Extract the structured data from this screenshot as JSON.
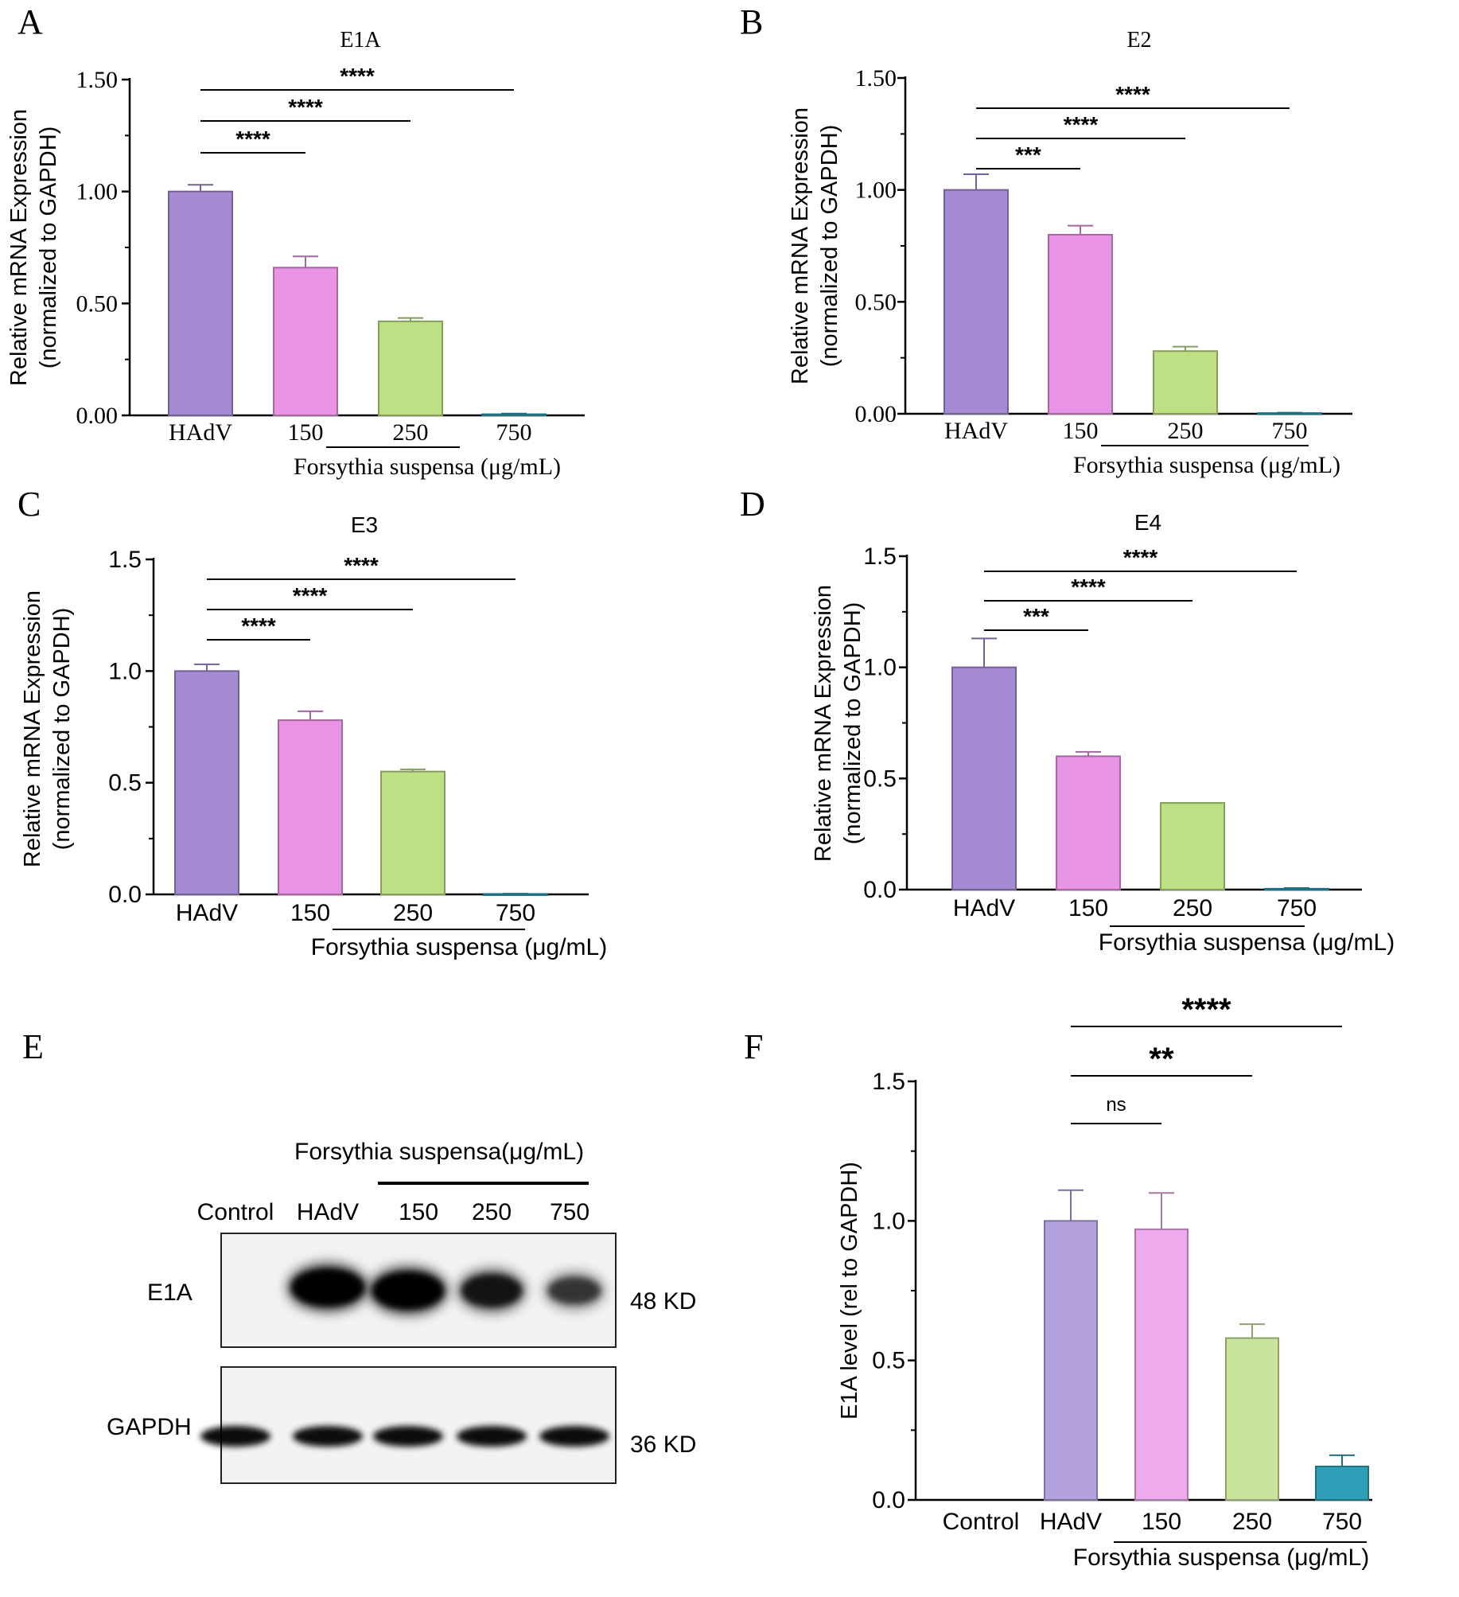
{
  "figure": {
    "panel_labels": [
      "A",
      "B",
      "C",
      "D",
      "E",
      "F"
    ],
    "x_group_label": "Forsythia suspensa (μg/mL)"
  },
  "colors": {
    "hadv": "#a58bd3",
    "c150": "#e993e6",
    "c250": "#bde084",
    "c750": "#2f9fb8",
    "f_hadv": "#b3a1de",
    "f_150": "#eeaaec",
    "f_250": "#c9e59c",
    "axis": "#000000"
  },
  "chart_data": [
    {
      "panel": "A",
      "type": "bar",
      "title": "E1A",
      "style": "serif-ticks",
      "ylabel": "Relative mRNA Expression",
      "ylabel2": "(normalized to GAPDH)",
      "xlabel": "Forsythia suspensa (μg/mL)",
      "categories": [
        "HAdV",
        "150",
        "250",
        "750"
      ],
      "values": [
        1.0,
        0.66,
        0.42,
        0.005
      ],
      "errors": [
        0.03,
        0.05,
        0.015,
        0.003
      ],
      "ylim": [
        0,
        1.5
      ],
      "yticks": [
        "0.00",
        "0.50",
        "1.00",
        "1.50"
      ],
      "significance": [
        {
          "from": 0,
          "to": 1,
          "label": "****"
        },
        {
          "from": 0,
          "to": 2,
          "label": "****"
        },
        {
          "from": 0,
          "to": 3,
          "label": "****"
        }
      ]
    },
    {
      "panel": "B",
      "type": "bar",
      "title": "E2",
      "style": "serif-ticks",
      "ylabel": "Relative mRNA Expression",
      "ylabel2": "(normalized to GAPDH)",
      "xlabel": "Forsythia suspensa (μg/mL)",
      "categories": [
        "HAdV",
        "150",
        "250",
        "750"
      ],
      "values": [
        1.0,
        0.8,
        0.28,
        0.003
      ],
      "errors": [
        0.07,
        0.04,
        0.02,
        0.002
      ],
      "ylim": [
        0,
        1.5
      ],
      "yticks": [
        "0.00",
        "0.50",
        "1.00",
        "1.50"
      ],
      "significance": [
        {
          "from": 0,
          "to": 1,
          "label": "***"
        },
        {
          "from": 0,
          "to": 2,
          "label": "****"
        },
        {
          "from": 0,
          "to": 3,
          "label": "****"
        }
      ]
    },
    {
      "panel": "C",
      "type": "bar",
      "title": "E3",
      "style": "sans",
      "ylabel": "Relative mRNA Expression",
      "ylabel2": "(normalized to GAPDH)",
      "xlabel": "Forsythia suspensa (μg/mL)",
      "categories": [
        "HAdV",
        "150",
        "250",
        "750"
      ],
      "values": [
        1.0,
        0.78,
        0.55,
        0.002
      ],
      "errors": [
        0.03,
        0.04,
        0.01,
        0.001
      ],
      "ylim": [
        0,
        1.5
      ],
      "yticks": [
        "0.0",
        "0.5",
        "1.0",
        "1.5"
      ],
      "significance": [
        {
          "from": 0,
          "to": 1,
          "label": "****"
        },
        {
          "from": 0,
          "to": 2,
          "label": "****"
        },
        {
          "from": 0,
          "to": 3,
          "label": "****"
        }
      ]
    },
    {
      "panel": "D",
      "type": "bar",
      "title": "E4",
      "style": "sans",
      "ylabel": "Relative mRNA Expression",
      "ylabel2": "(normalized to GAPDH)",
      "xlabel": "Forsythia suspensa (μg/mL)",
      "categories": [
        "HAdV",
        "150",
        "250",
        "750"
      ],
      "values": [
        1.0,
        0.6,
        0.39,
        0.004
      ],
      "errors": [
        0.13,
        0.02,
        0.0,
        0.003
      ],
      "ylim": [
        0,
        1.5
      ],
      "yticks": [
        "0.0",
        "0.5",
        "1.0",
        "1.5"
      ],
      "significance": [
        {
          "from": 0,
          "to": 1,
          "label": "***"
        },
        {
          "from": 0,
          "to": 2,
          "label": "****"
        },
        {
          "from": 0,
          "to": 3,
          "label": "****"
        }
      ]
    },
    {
      "panel": "F",
      "type": "bar",
      "title": "",
      "style": "sans",
      "ylabel": "E1A  level (rel to GAPDH)",
      "ylabel2": "",
      "xlabel": "Forsythia suspensa (μg/mL)",
      "categories": [
        "Control",
        "HAdV",
        "150",
        "250",
        "750"
      ],
      "values": [
        0.0,
        1.0,
        0.97,
        0.58,
        0.12
      ],
      "errors": [
        0.0,
        0.11,
        0.13,
        0.05,
        0.04
      ],
      "ylim": [
        0,
        1.5
      ],
      "yticks": [
        "0.0",
        "0.5",
        "1.0",
        "1.5"
      ],
      "significance": [
        {
          "from": 1,
          "to": 2,
          "label": "ns"
        },
        {
          "from": 1,
          "to": 3,
          "label": "**"
        },
        {
          "from": 1,
          "to": 4,
          "label": "****"
        }
      ]
    }
  ],
  "blot": {
    "header": "Forsythia suspensa(μg/mL)",
    "lanes": [
      "Control",
      "HAdV",
      "150",
      "250",
      "750"
    ],
    "rows": [
      {
        "label": "E1A",
        "size": "48 KD",
        "intensity": [
          0,
          1.0,
          1.0,
          0.75,
          0.45
        ]
      },
      {
        "label": "GAPDH",
        "size": "36 KD",
        "intensity": [
          1.0,
          1.0,
          1.0,
          1.0,
          1.0
        ]
      }
    ]
  }
}
